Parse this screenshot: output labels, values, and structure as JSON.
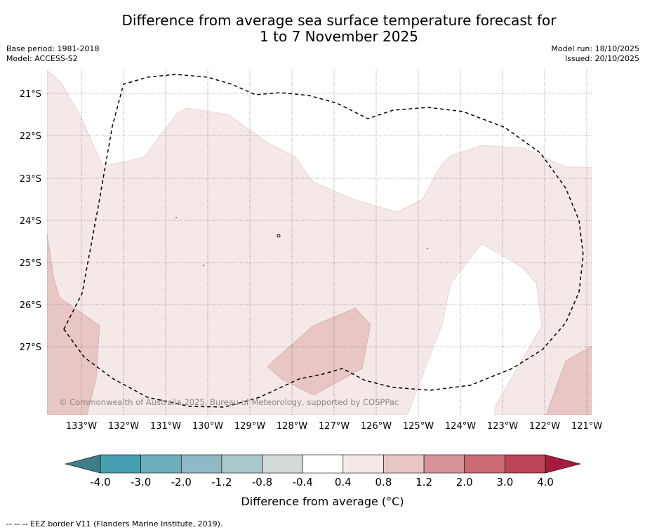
{
  "title": {
    "line1": "Difference from average sea surface temperature forecast for",
    "line2": "1 to 7 November 2025"
  },
  "meta_left": {
    "base_period": "Base period: 1981-2018",
    "model": "Model: ACCESS-S2"
  },
  "meta_right": {
    "model_run": "Model run: 18/10/2025",
    "issued": "Issued: 20/10/2025"
  },
  "map": {
    "lat_labels": [
      "21°S",
      "22°S",
      "23°S",
      "24°S",
      "25°S",
      "26°S",
      "27°S"
    ],
    "lon_labels": [
      "133°W",
      "132°W",
      "131°W",
      "130°W",
      "129°W",
      "128°W",
      "127°W",
      "126°W",
      "125°W",
      "124°W",
      "123°W",
      "122°W",
      "121°W"
    ],
    "copyright": "© Commonwealth of Australia 2025, Bureau of Meteorology, supported by COSPPac",
    "colors": {
      "anomaly_0_4_0_8": "#f5e9e8",
      "anomaly_0_8_1_2": "#e8c6c3",
      "eez_line": "#000000",
      "gridline": "#555555"
    }
  },
  "colorbar": {
    "ticks": [
      "-4.0",
      "-3.0",
      "-2.0",
      "-1.2",
      "-0.8",
      "-0.4",
      "0.4",
      "0.8",
      "1.2",
      "2.0",
      "3.0",
      "4.0"
    ],
    "segment_colors": [
      "#46a0b2",
      "#6eaebb",
      "#8cb9c3",
      "#a9c8cc",
      "#d3d8d9",
      "#ffffff",
      "#f5e9e8",
      "#e8c6c3",
      "#d7939a",
      "#cc6a75",
      "#bd4556"
    ],
    "low_extension_color": "#3d7f89",
    "high_extension_color": "#a51c3c",
    "label": "Difference from average (°C)"
  },
  "footer_note": "--  --  -- EEZ border V11 (Flanders Marine Institute, 2019)."
}
